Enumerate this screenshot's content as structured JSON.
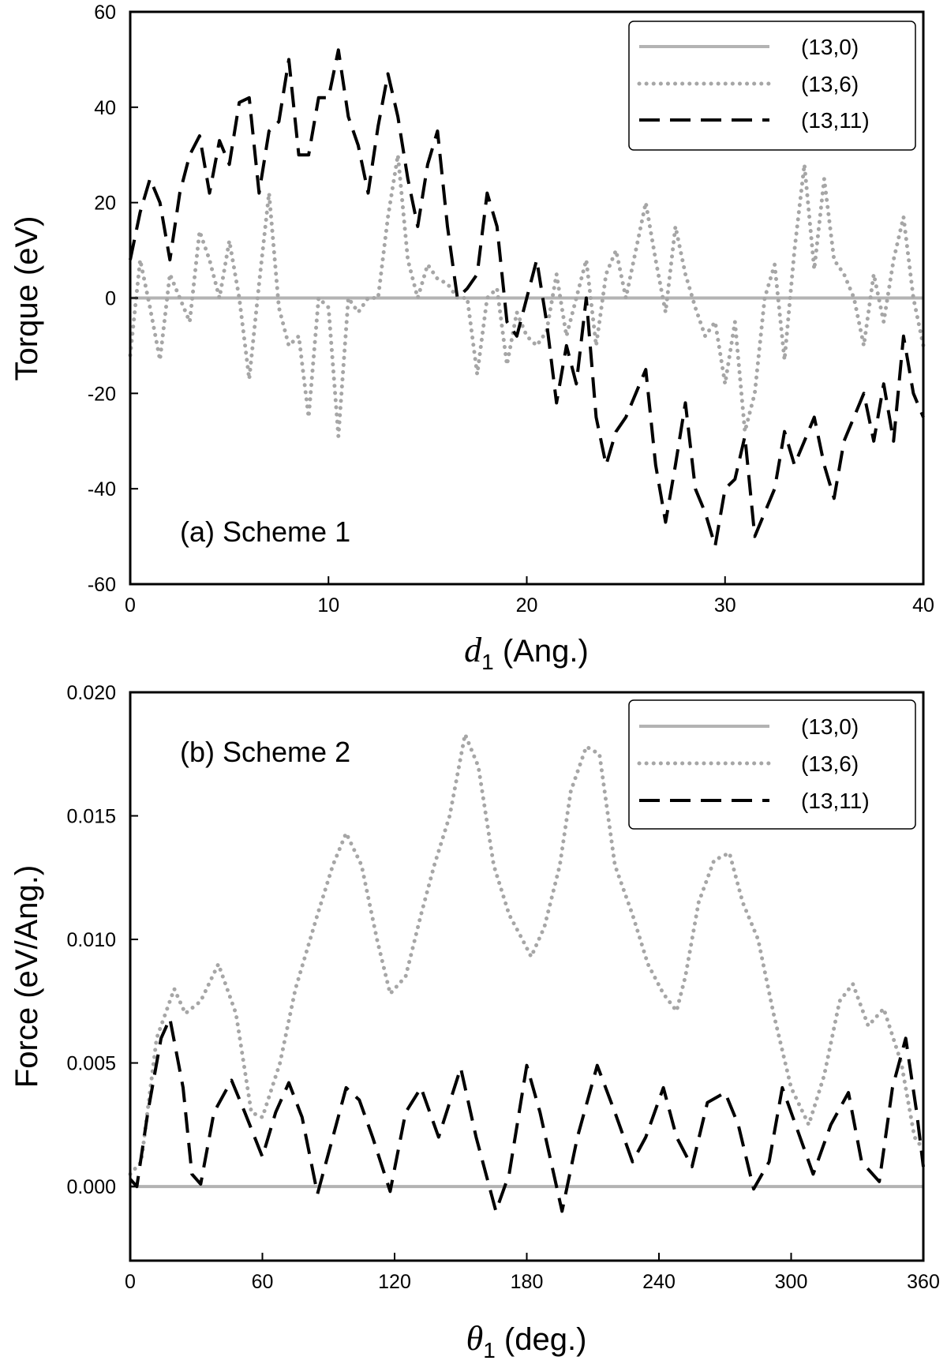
{
  "chart_data": [
    {
      "id": "a",
      "type": "line",
      "annotation": "(a) Scheme 1",
      "xlabel_symbol": "d",
      "xlabel_sub": "1",
      "xlabel_unit": "(Ang.)",
      "ylabel": "Torque (eV)",
      "xlim": [
        0,
        40
      ],
      "ylim": [
        -60,
        60
      ],
      "xticks": [
        0,
        10,
        20,
        30,
        40
      ],
      "xtick_labels": [
        "0",
        "10",
        "20",
        "30",
        "40"
      ],
      "yticks": [
        -60,
        -40,
        -20,
        0,
        20,
        40,
        60
      ],
      "ytick_labels": [
        "-60",
        "-40",
        "-20",
        "0",
        "20",
        "40",
        "60"
      ],
      "grid": false,
      "legend_position": "top-right",
      "series": [
        {
          "name": "(13,0)",
          "style": "solid",
          "color": "#b3b3b3",
          "x": [
            0,
            40
          ],
          "values": [
            0,
            0
          ]
        },
        {
          "name": "(13,6)",
          "style": "dotted",
          "color": "#a6a6a6",
          "x": [
            0,
            0.5,
            1.0,
            1.5,
            2.0,
            2.5,
            3.0,
            3.5,
            4.0,
            4.5,
            5.0,
            5.5,
            6.0,
            6.5,
            7.0,
            7.5,
            8.0,
            8.5,
            9.0,
            9.5,
            10.0,
            10.5,
            11.0,
            11.5,
            12.0,
            12.5,
            13.0,
            13.5,
            14.0,
            14.5,
            15.0,
            15.5,
            16.0,
            16.5,
            17.0,
            17.5,
            18.0,
            18.5,
            19.0,
            19.5,
            20.0,
            20.5,
            21.0,
            21.5,
            22.0,
            22.5,
            23.0,
            23.5,
            24.0,
            24.5,
            25.0,
            25.5,
            26.0,
            26.5,
            27.0,
            27.5,
            28.0,
            28.5,
            29.0,
            29.5,
            30.0,
            30.5,
            31.0,
            31.5,
            32.0,
            32.5,
            33.0,
            33.5,
            34.0,
            34.5,
            35.0,
            35.5,
            36.0,
            36.5,
            37.0,
            37.5,
            38.0,
            38.5,
            39.0,
            39.5,
            40.0
          ],
          "values": [
            -12,
            8,
            -2,
            -13,
            5,
            0,
            -5,
            14,
            8,
            0,
            12,
            0,
            -17,
            3,
            22,
            -2,
            -10,
            -8,
            -25,
            0,
            -2,
            -29,
            0,
            -3,
            0,
            0,
            17,
            30,
            8,
            0,
            7,
            4,
            3,
            0,
            0,
            -16,
            0,
            2,
            -14,
            -3,
            -8,
            -10,
            -7,
            5,
            -8,
            0,
            8,
            -10,
            5,
            10,
            0,
            10,
            20,
            8,
            -3,
            15,
            5,
            -2,
            -8,
            -5,
            -18,
            -5,
            -28,
            -20,
            0,
            7,
            -13,
            10,
            28,
            6,
            25,
            8,
            5,
            0,
            -10,
            5,
            -5,
            8,
            17,
            0,
            -10
          ]
        },
        {
          "name": "(13,11)",
          "style": "dashed",
          "color": "#000000",
          "x": [
            0,
            0.5,
            1.0,
            1.5,
            2.0,
            2.5,
            3.0,
            3.5,
            4.0,
            4.5,
            5.0,
            5.5,
            6.0,
            6.5,
            7.0,
            7.5,
            8.0,
            8.5,
            9.0,
            9.5,
            10.0,
            10.5,
            11.0,
            11.5,
            12.0,
            12.5,
            13.0,
            13.5,
            14.0,
            14.5,
            15.0,
            15.5,
            16.0,
            16.5,
            17.0,
            17.5,
            18.0,
            18.5,
            19.0,
            19.5,
            20.0,
            20.5,
            21.0,
            21.5,
            22.0,
            22.5,
            23.0,
            23.5,
            24.0,
            24.5,
            25.0,
            25.5,
            26.0,
            26.5,
            27.0,
            27.5,
            28.0,
            28.5,
            29.0,
            29.5,
            30.0,
            30.5,
            31.0,
            31.5,
            32.0,
            32.5,
            33.0,
            33.5,
            34.0,
            34.5,
            35.0,
            35.5,
            36.0,
            36.5,
            37.0,
            37.5,
            38.0,
            38.5,
            39.0,
            39.5,
            40.0
          ],
          "values": [
            8,
            18,
            25,
            20,
            8,
            22,
            30,
            34,
            22,
            33,
            28,
            41,
            42,
            22,
            35,
            37,
            50,
            30,
            30,
            42,
            42,
            52,
            38,
            32,
            22,
            36,
            47,
            38,
            25,
            15,
            28,
            35,
            15,
            0,
            2,
            5,
            22,
            15,
            -5,
            -8,
            0,
            8,
            -5,
            -22,
            -10,
            -18,
            0,
            -25,
            -35,
            -28,
            -25,
            -20,
            -15,
            -35,
            -47,
            -35,
            -22,
            -40,
            -45,
            -52,
            -40,
            -38,
            -29,
            -50,
            -45,
            -40,
            -28,
            -35,
            -30,
            -25,
            -35,
            -42,
            -30,
            -25,
            -20,
            -30,
            -18,
            -30,
            -8,
            -20,
            -25
          ]
        }
      ]
    },
    {
      "id": "b",
      "type": "line",
      "annotation": "(b) Scheme 2",
      "xlabel_symbol": "θ",
      "xlabel_sub": "1",
      "xlabel_unit": "(deg.)",
      "ylabel": "Force (eV/Ang.)",
      "xlim": [
        0,
        360
      ],
      "ylim": [
        -0.003,
        0.02
      ],
      "xticks": [
        0,
        60,
        120,
        180,
        240,
        300,
        360
      ],
      "xtick_labels": [
        "0",
        "60",
        "120",
        "180",
        "240",
        "300",
        "360"
      ],
      "yticks": [
        0,
        0.005,
        0.01,
        0.015,
        0.02
      ],
      "ytick_labels": [
        "0.000",
        "0.005",
        "0.010",
        "0.015",
        "0.020"
      ],
      "grid": false,
      "legend_position": "top-right",
      "series": [
        {
          "name": "(13,0)",
          "style": "solid",
          "color": "#b3b3b3",
          "x": [
            0,
            360
          ],
          "values": [
            0,
            0
          ]
        },
        {
          "name": "(13,6)",
          "style": "dotted",
          "color": "#a6a6a6",
          "x": [
            0,
            5,
            12,
            20,
            25,
            32,
            40,
            48,
            55,
            60,
            68,
            75,
            85,
            92,
            98,
            105,
            112,
            118,
            125,
            132,
            138,
            145,
            152,
            158,
            165,
            172,
            178,
            182,
            188,
            195,
            200,
            207,
            213,
            220,
            228,
            235,
            242,
            248,
            252,
            258,
            265,
            272,
            278,
            285,
            292,
            300,
            308,
            315,
            322,
            328,
            335,
            342,
            350,
            356,
            360
          ],
          "values": [
            0.0005,
            0.001,
            0.006,
            0.008,
            0.007,
            0.0075,
            0.009,
            0.007,
            0.003,
            0.0028,
            0.005,
            0.008,
            0.011,
            0.013,
            0.0143,
            0.013,
            0.01,
            0.0078,
            0.0085,
            0.011,
            0.013,
            0.015,
            0.0183,
            0.017,
            0.013,
            0.011,
            0.01,
            0.0093,
            0.0105,
            0.013,
            0.016,
            0.0178,
            0.0175,
            0.013,
            0.011,
            0.009,
            0.0078,
            0.0071,
            0.0085,
            0.0115,
            0.0132,
            0.0135,
            0.0115,
            0.01,
            0.007,
            0.004,
            0.0025,
            0.0045,
            0.0075,
            0.0082,
            0.0065,
            0.0072,
            0.005,
            0.002,
            0.0015
          ]
        },
        {
          "name": "(13,11)",
          "style": "dashed",
          "color": "#000000",
          "x": [
            0,
            3,
            8,
            14,
            18,
            24,
            28,
            32,
            38,
            46,
            52,
            60,
            66,
            72,
            78,
            85,
            92,
            98,
            104,
            110,
            118,
            125,
            132,
            140,
            150,
            157,
            166,
            172,
            180,
            186,
            196,
            203,
            212,
            220,
            228,
            234,
            242,
            248,
            255,
            262,
            270,
            276,
            283,
            290,
            296,
            304,
            310,
            318,
            326,
            332,
            340,
            346,
            352,
            357,
            360
          ],
          "values": [
            0.0003,
            0,
            0.003,
            0.006,
            0.0068,
            0.004,
            0.0005,
            0.0001,
            0.003,
            0.0043,
            0.003,
            0.0012,
            0.003,
            0.0042,
            0.0028,
            -0.0003,
            0.002,
            0.004,
            0.0035,
            0.002,
            -0.0002,
            0.003,
            0.004,
            0.002,
            0.0048,
            0.002,
            -0.001,
            0.0005,
            0.0049,
            0.003,
            -0.001,
            0.002,
            0.0049,
            0.003,
            0.001,
            0.002,
            0.004,
            0.002,
            0.0008,
            0.0034,
            0.0038,
            0.0025,
            -0.0001,
            0.001,
            0.004,
            0.002,
            0.0005,
            0.0025,
            0.0038,
            0.001,
            0.0002,
            0.004,
            0.006,
            0.003,
            0.0008
          ]
        }
      ]
    }
  ]
}
